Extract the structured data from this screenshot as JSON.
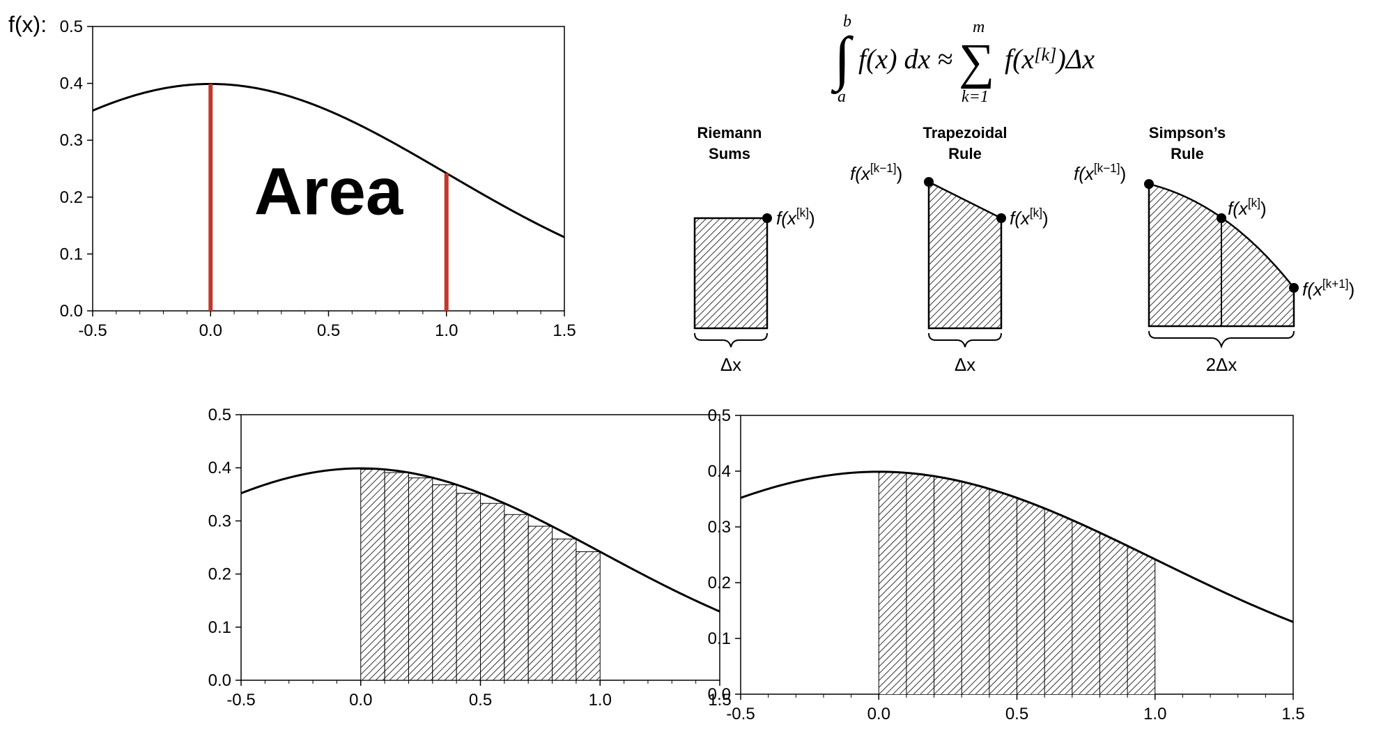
{
  "page_label": "f(x):",
  "area_label": "Area",
  "formula": {
    "text": "∫ₐᵇ f(x) dx ≈ ∑ₖ₌₁ᵐ f(x[k])Δx",
    "upper": "b",
    "lower": "a",
    "sum_upper": "m",
    "sum_lower": "k=1",
    "integrand": "f(x) dx ≈",
    "summand": "f(x[k])Δx"
  },
  "methods": [
    {
      "name_lines": [
        "Riemann",
        "Sums"
      ],
      "points": [
        "f(x[k])"
      ],
      "width_label": "Δx"
    },
    {
      "name_lines": [
        "Trapezoidal",
        "Rule"
      ],
      "points": [
        "f(x[k−1])",
        "f(x[k])"
      ],
      "width_label": "Δx"
    },
    {
      "name_lines": [
        "Simpson’s",
        "Rule"
      ],
      "points": [
        "f(x[k−1])",
        "f(x[k])",
        "f(x[k+1])"
      ],
      "width_label": "2Δx"
    }
  ],
  "chart_data": [
    {
      "type": "line",
      "function": "standard normal pdf",
      "x": [
        -0.5,
        -0.4,
        -0.3,
        -0.2,
        -0.1,
        0.0,
        0.1,
        0.2,
        0.3,
        0.4,
        0.5,
        0.6,
        0.7,
        0.8,
        0.9,
        1.0,
        1.1,
        1.2,
        1.3,
        1.4,
        1.5
      ],
      "y": [
        0.352,
        0.368,
        0.381,
        0.391,
        0.397,
        0.399,
        0.397,
        0.391,
        0.381,
        0.368,
        0.352,
        0.333,
        0.312,
        0.29,
        0.266,
        0.242,
        0.218,
        0.194,
        0.171,
        0.15,
        0.13
      ],
      "xlim": [
        -0.5,
        1.5
      ],
      "ylim": [
        0.0,
        0.5
      ],
      "xticks": [
        "-0.5",
        "0.0",
        "0.5",
        "1.0",
        "1.5"
      ],
      "yticks": [
        "0.0",
        "0.1",
        "0.2",
        "0.3",
        "0.4",
        "0.5"
      ],
      "markers": [
        0.0,
        1.0
      ],
      "marker_color": "#c0392b",
      "annotation": "Area"
    },
    {
      "type": "bar",
      "method": "Riemann sums (right endpoints)",
      "x": [
        -0.5,
        -0.4,
        -0.3,
        -0.2,
        -0.1,
        0.0,
        0.1,
        0.2,
        0.3,
        0.4,
        0.5,
        0.6,
        0.7,
        0.8,
        0.9,
        1.0,
        1.1,
        1.2,
        1.3,
        1.4,
        1.5
      ],
      "y": [
        0.352,
        0.368,
        0.381,
        0.391,
        0.397,
        0.399,
        0.397,
        0.391,
        0.381,
        0.368,
        0.352,
        0.333,
        0.312,
        0.29,
        0.266,
        0.242,
        0.218,
        0.194,
        0.171,
        0.15,
        0.13
      ],
      "bar_left_edges": [
        0.0,
        0.1,
        0.2,
        0.3,
        0.4,
        0.5,
        0.6,
        0.7,
        0.8,
        0.9
      ],
      "bar_width": 0.1,
      "bar_heights": [
        0.397,
        0.391,
        0.381,
        0.368,
        0.352,
        0.333,
        0.312,
        0.29,
        0.266,
        0.242
      ],
      "xlim": [
        -0.5,
        1.5
      ],
      "ylim": [
        0.0,
        0.5
      ],
      "xticks": [
        "-0.5",
        "0.0",
        "0.5",
        "1.0",
        "1.5"
      ],
      "yticks": [
        "0.0",
        "0.1",
        "0.2",
        "0.3",
        "0.4",
        "0.5"
      ]
    },
    {
      "type": "area",
      "method": "Trapezoidal rule",
      "x": [
        -0.5,
        -0.4,
        -0.3,
        -0.2,
        -0.1,
        0.0,
        0.1,
        0.2,
        0.3,
        0.4,
        0.5,
        0.6,
        0.7,
        0.8,
        0.9,
        1.0,
        1.1,
        1.2,
        1.3,
        1.4,
        1.5
      ],
      "y": [
        0.352,
        0.368,
        0.381,
        0.391,
        0.397,
        0.399,
        0.397,
        0.391,
        0.381,
        0.368,
        0.352,
        0.333,
        0.312,
        0.29,
        0.266,
        0.242,
        0.218,
        0.194,
        0.171,
        0.15,
        0.13
      ],
      "partition": [
        0.0,
        0.1,
        0.2,
        0.3,
        0.4,
        0.5,
        0.6,
        0.7,
        0.8,
        0.9,
        1.0
      ],
      "xlim": [
        -0.5,
        1.5
      ],
      "ylim": [
        0.0,
        0.5
      ],
      "xticks": [
        "-0.5",
        "0.0",
        "0.5",
        "1.0",
        "1.5"
      ],
      "yticks": [
        "0.0",
        "0.1",
        "0.2",
        "0.3",
        "0.4",
        "0.5"
      ]
    }
  ]
}
